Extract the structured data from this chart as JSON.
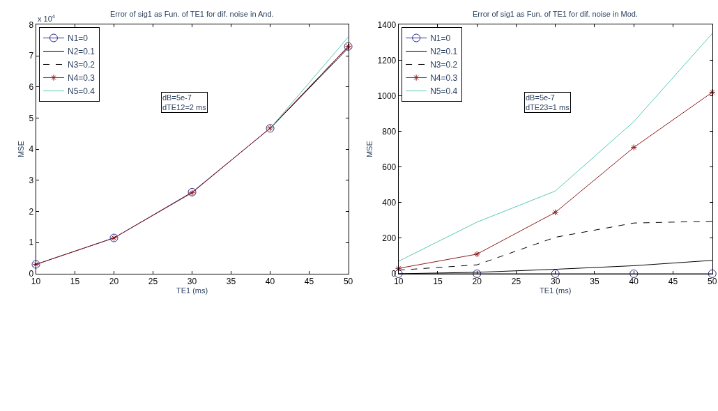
{
  "chart_data": [
    {
      "type": "line",
      "title": "Error of sig1 as Fun. of TE1 for dif. noise in And.",
      "xlabel": "TE1 (ms)",
      "ylabel": "MSE",
      "annotations": [
        "x 10$^{4}$",
        "dB=5e-7\ndTE12=2 ms"
      ],
      "x": [
        10,
        20,
        30,
        40,
        50
      ],
      "series": [
        {
          "name": "N1=0",
          "color": "#2b2b8c",
          "marker": "circle",
          "line_style": "solid",
          "values": [
            0.3,
            1.15,
            2.62,
            4.67,
            7.3
          ]
        },
        {
          "name": "N2=0.1",
          "color": "#000000",
          "marker": "none",
          "line_style": "solid",
          "values": [
            null,
            null,
            null,
            4.67,
            7.25
          ]
        },
        {
          "name": "N3=0.2",
          "color": "#000000",
          "marker": "none",
          "line_style": "dashed",
          "values": [
            null,
            null,
            null,
            null,
            null
          ]
        },
        {
          "name": "N4=0.3",
          "color": "#8b1a1a",
          "marker": "cross",
          "line_style": "solid",
          "values": [
            0.3,
            1.15,
            2.6,
            4.68,
            7.3
          ]
        },
        {
          "name": "N5=0.4",
          "color": "#55c8b4",
          "marker": "none",
          "line_style": "solid",
          "values": [
            null,
            null,
            null,
            4.67,
            7.6
          ]
        }
      ],
      "xlim": [
        10,
        50
      ],
      "xticks": [
        10,
        15,
        20,
        25,
        30,
        35,
        40,
        45,
        50
      ],
      "ylim": [
        0,
        8
      ],
      "yticks": [
        0,
        1,
        2,
        3,
        4,
        5,
        6,
        7,
        8
      ],
      "legend": "top left"
    },
    {
      "type": "line",
      "title": "Error of sig1 as Fun. of TE1 for dif. noise in Mod.",
      "xlabel": "TE1 (ms)",
      "ylabel": "MSE",
      "annotations": [
        "dB=5e-7\ndTE23=1 ms"
      ],
      "x": [
        10,
        20,
        30,
        40,
        50
      ],
      "series": [
        {
          "name": "N1=0",
          "color": "#2b2b8c",
          "marker": "circle",
          "line_style": "solid",
          "values": [
            0,
            0,
            0,
            0,
            0
          ]
        },
        {
          "name": "N2=0.1",
          "color": "#000000",
          "marker": "none",
          "line_style": "solid",
          "values": [
            0,
            8,
            25,
            45,
            75
          ]
        },
        {
          "name": "N3=0.2",
          "color": "#000000",
          "marker": "none",
          "line_style": "dashed",
          "values": [
            20,
            50,
            205,
            285,
            295
          ]
        },
        {
          "name": "N4=0.3",
          "color": "#8b1a1a",
          "marker": "cross",
          "line_style": "solid",
          "values": [
            30,
            110,
            345,
            710,
            1020
          ]
        },
        {
          "name": "N5=0.4",
          "color": "#55c8b4",
          "marker": "none",
          "line_style": "solid",
          "values": [
            70,
            290,
            465,
            855,
            1350
          ]
        }
      ],
      "xlim": [
        10,
        50
      ],
      "xticks": [
        10,
        15,
        20,
        25,
        30,
        35,
        40,
        45,
        50
      ],
      "ylim": [
        0,
        1400
      ],
      "yticks": [
        0,
        200,
        400,
        600,
        800,
        1000,
        1200,
        1400
      ],
      "legend": "top left"
    }
  ]
}
